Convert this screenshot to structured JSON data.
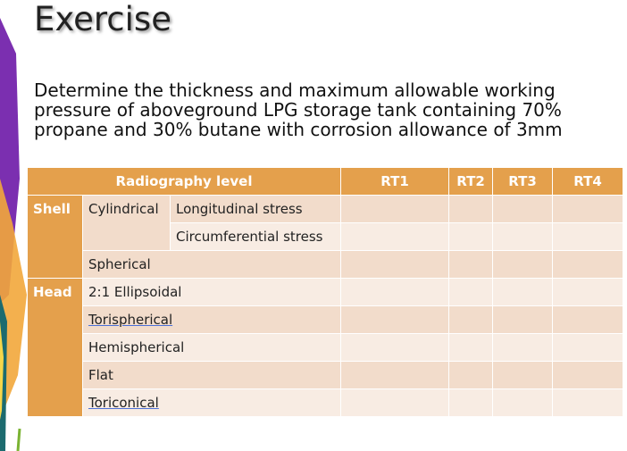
{
  "title": "Exercise",
  "body": [
    "Determine the thickness and maximum allowable working",
    "pressure of aboveground LPG storage tank containing 70%",
    "propane and 30% butane with corrosion allowance of 3mm"
  ],
  "table": {
    "header": [
      "Radiography level",
      "RT1",
      "RT2",
      "RT3",
      "RT4"
    ],
    "shell": {
      "label": "Shell",
      "cylindrical": "Cylindrical",
      "stresses": [
        "Longitudinal stress",
        "Circumferential stress"
      ],
      "spherical": "Spherical"
    },
    "head": {
      "label": "Head",
      "items": [
        "2:1 Ellipsoidal",
        "Torispherical",
        "Hemispherical",
        "Flat",
        "Toriconical"
      ]
    }
  }
}
